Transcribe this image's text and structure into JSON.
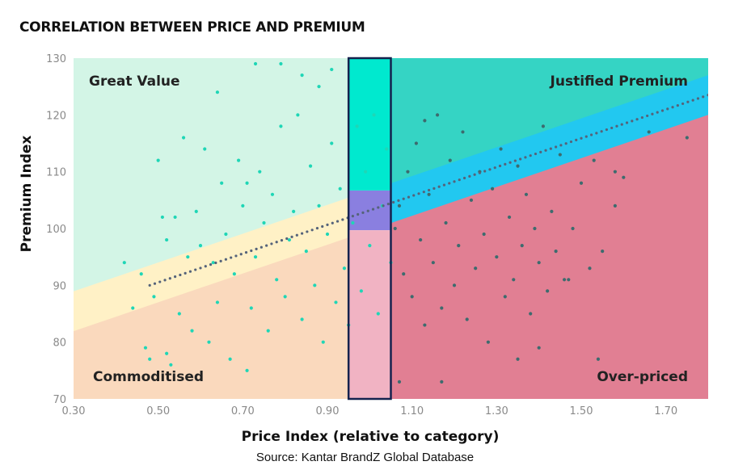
{
  "chart_data": {
    "type": "scatter",
    "title": "CORRELATION BETWEEN PRICE AND PREMIUM",
    "xlabel": "Price Index (relative to category)",
    "ylabel": "Premium Index",
    "xlim": [
      0.3,
      1.8
    ],
    "ylim": [
      70,
      130
    ],
    "x_ticks": [
      "0.30",
      "0.50",
      "0.70",
      "0.90",
      "1.10",
      "1.30",
      "1.50",
      "1.70"
    ],
    "y_ticks": [
      "70",
      "80",
      "90",
      "100",
      "110",
      "120",
      "130"
    ],
    "grid": false,
    "trend_line": {
      "x": [
        0.48,
        1.8
      ],
      "y": [
        90,
        123.5
      ]
    },
    "highlight_x_range": [
      0.95,
      1.05
    ],
    "quadrants": [
      {
        "label": "Great Value",
        "position": "top-left",
        "color": "#d3f5e6"
      },
      {
        "label": "Justified Premium",
        "position": "top-right",
        "color": "#35d4c4"
      },
      {
        "label": "Commoditised",
        "position": "bottom-left",
        "color": "#fad9bd"
      },
      {
        "label": "Over-priced",
        "position": "bottom-right",
        "color": "#e17f93"
      }
    ],
    "series": [
      {
        "color": "#1fd6b6",
        "points": [
          [
            0.42,
            94
          ],
          [
            0.44,
            86
          ],
          [
            0.46,
            92
          ],
          [
            0.47,
            79
          ],
          [
            0.48,
            77
          ],
          [
            0.49,
            88
          ],
          [
            0.5,
            112
          ],
          [
            0.51,
            102
          ],
          [
            0.52,
            98
          ],
          [
            0.52,
            78
          ],
          [
            0.53,
            76
          ],
          [
            0.54,
            102
          ],
          [
            0.55,
            85
          ],
          [
            0.56,
            116
          ],
          [
            0.57,
            95
          ],
          [
            0.58,
            82
          ],
          [
            0.59,
            103
          ],
          [
            0.6,
            97
          ],
          [
            0.61,
            114
          ],
          [
            0.62,
            80
          ],
          [
            0.63,
            94
          ],
          [
            0.64,
            87
          ],
          [
            0.65,
            108
          ],
          [
            0.66,
            99
          ],
          [
            0.67,
            77
          ],
          [
            0.68,
            92
          ],
          [
            0.69,
            112
          ],
          [
            0.7,
            104
          ],
          [
            0.71,
            75
          ],
          [
            0.72,
            86
          ],
          [
            0.73,
            95
          ],
          [
            0.74,
            110
          ],
          [
            0.75,
            101
          ],
          [
            0.76,
            82
          ],
          [
            0.77,
            106
          ],
          [
            0.78,
            91
          ],
          [
            0.79,
            118
          ],
          [
            0.8,
            88
          ],
          [
            0.81,
            98
          ],
          [
            0.82,
            103
          ],
          [
            0.83,
            120
          ],
          [
            0.84,
            84
          ],
          [
            0.85,
            96
          ],
          [
            0.86,
            111
          ],
          [
            0.87,
            90
          ],
          [
            0.88,
            104
          ],
          [
            0.89,
            80
          ],
          [
            0.9,
            99
          ],
          [
            0.91,
            115
          ],
          [
            0.92,
            87
          ],
          [
            0.93,
            107
          ],
          [
            0.94,
            93
          ],
          [
            0.95,
            83
          ],
          [
            0.96,
            101
          ],
          [
            0.97,
            118
          ],
          [
            0.98,
            89
          ],
          [
            0.99,
            110
          ],
          [
            1.0,
            97
          ],
          [
            1.01,
            120
          ],
          [
            1.02,
            85
          ],
          [
            1.03,
            104
          ],
          [
            1.04,
            114
          ],
          [
            1.05,
            94
          ],
          [
            0.73,
            129
          ],
          [
            0.79,
            129
          ],
          [
            0.84,
            127
          ],
          [
            0.91,
            128
          ],
          [
            0.64,
            124
          ],
          [
            0.88,
            125
          ],
          [
            0.71,
            108
          ]
        ]
      },
      {
        "color": "#3d6b6e",
        "points": [
          [
            1.06,
            100
          ],
          [
            1.07,
            104
          ],
          [
            1.08,
            92
          ],
          [
            1.09,
            110
          ],
          [
            1.1,
            88
          ],
          [
            1.11,
            115
          ],
          [
            1.12,
            98
          ],
          [
            1.13,
            83
          ],
          [
            1.14,
            106
          ],
          [
            1.15,
            94
          ],
          [
            1.16,
            120
          ],
          [
            1.17,
            86
          ],
          [
            1.18,
            101
          ],
          [
            1.19,
            112
          ],
          [
            1.2,
            90
          ],
          [
            1.21,
            97
          ],
          [
            1.22,
            117
          ],
          [
            1.23,
            84
          ],
          [
            1.24,
            105
          ],
          [
            1.25,
            93
          ],
          [
            1.26,
            110
          ],
          [
            1.27,
            99
          ],
          [
            1.28,
            80
          ],
          [
            1.29,
            107
          ],
          [
            1.3,
            95
          ],
          [
            1.31,
            114
          ],
          [
            1.32,
            88
          ],
          [
            1.33,
            102
          ],
          [
            1.34,
            91
          ],
          [
            1.35,
            111
          ],
          [
            1.36,
            97
          ],
          [
            1.37,
            106
          ],
          [
            1.38,
            85
          ],
          [
            1.39,
            100
          ],
          [
            1.4,
            94
          ],
          [
            1.41,
            118
          ],
          [
            1.42,
            89
          ],
          [
            1.43,
            103
          ],
          [
            1.44,
            96
          ],
          [
            1.45,
            113
          ],
          [
            1.47,
            91
          ],
          [
            1.48,
            100
          ],
          [
            1.5,
            108
          ],
          [
            1.52,
            93
          ],
          [
            1.54,
            77
          ],
          [
            1.55,
            96
          ],
          [
            1.58,
            104
          ],
          [
            1.6,
            109
          ],
          [
            1.17,
            73
          ],
          [
            1.35,
            77
          ],
          [
            1.4,
            79
          ],
          [
            1.46,
            91
          ],
          [
            1.53,
            112
          ],
          [
            1.58,
            110
          ],
          [
            1.66,
            117
          ],
          [
            1.75,
            116
          ],
          [
            1.07,
            73
          ],
          [
            1.13,
            119
          ]
        ]
      }
    ]
  },
  "source": "Source: Kantar BrandZ Global Database"
}
